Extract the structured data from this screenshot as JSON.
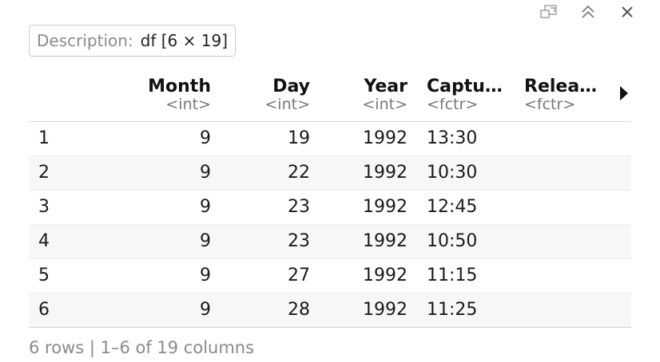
{
  "description": {
    "label": "Description:",
    "value": "df [6 × 19]"
  },
  "toolbar": {
    "icons": [
      "show-in-window-icon",
      "collapse-icon",
      "close-icon"
    ]
  },
  "columns": [
    {
      "name": "Month",
      "type": "<int>"
    },
    {
      "name": "Day",
      "type": "<int>"
    },
    {
      "name": "Year",
      "type": "<int>"
    },
    {
      "name": "Captu…",
      "type": "<fctr>"
    },
    {
      "name": "Relea…",
      "type": "<fctr>"
    }
  ],
  "rows": [
    {
      "index": "1",
      "month": "9",
      "day": "19",
      "year": "1992",
      "capture": "13:30",
      "release": ""
    },
    {
      "index": "2",
      "month": "9",
      "day": "22",
      "year": "1992",
      "capture": "10:30",
      "release": ""
    },
    {
      "index": "3",
      "month": "9",
      "day": "23",
      "year": "1992",
      "capture": "12:45",
      "release": ""
    },
    {
      "index": "4",
      "month": "9",
      "day": "23",
      "year": "1992",
      "capture": "10:50",
      "release": ""
    },
    {
      "index": "5",
      "month": "9",
      "day": "27",
      "year": "1992",
      "capture": "11:15",
      "release": ""
    },
    {
      "index": "6",
      "month": "9",
      "day": "28",
      "year": "1992",
      "capture": "11:25",
      "release": ""
    }
  ],
  "footer": {
    "summary": "6 rows | 1–6 of 19 columns"
  }
}
